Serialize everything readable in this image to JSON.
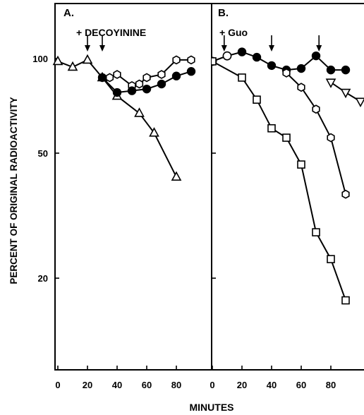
{
  "figure": {
    "ylabel": "PERCENT OF ORIGINAL RADIOACTIVITY",
    "xlabel": "MINUTES"
  },
  "chart_data": [
    {
      "type": "line",
      "panel_label": "A.",
      "annotation": "+ DECOYININE",
      "arrows_at_minutes": [
        20,
        30
      ],
      "x_ticks": [
        0,
        20,
        40,
        60,
        80
      ],
      "y_ticks": [
        100,
        50,
        20
      ],
      "xlim": [
        0,
        100
      ],
      "ylim": [
        10,
        150
      ],
      "y_scale": "log",
      "series": [
        {
          "marker": "triangle",
          "x": [
            0,
            10,
            20,
            30,
            40,
            55,
            65,
            80
          ],
          "y": [
            98,
            94,
            99,
            87,
            76,
            67,
            58,
            42
          ]
        },
        {
          "marker": "hexagon",
          "x": [
            30,
            35,
            40,
            50,
            55,
            60,
            70,
            80,
            90
          ],
          "y": [
            87,
            87,
            89,
            82,
            83,
            87,
            89,
            99,
            99
          ]
        },
        {
          "marker": "filled-circle",
          "x": [
            30,
            40,
            50,
            60,
            70,
            80,
            90
          ],
          "y": [
            87,
            78,
            79,
            80,
            83,
            88,
            91
          ]
        }
      ]
    },
    {
      "type": "line",
      "panel_label": "B.",
      "annotation": "+ Guo",
      "arrows_at_minutes": [
        8,
        40,
        72
      ],
      "x_ticks": [
        0,
        20,
        40,
        60,
        80
      ],
      "y_ticks": [
        100,
        50,
        20
      ],
      "xlim": [
        0,
        100
      ],
      "ylim": [
        10,
        150
      ],
      "y_scale": "log",
      "series": [
        {
          "marker": "filled-circle",
          "x": [
            0,
            10,
            20,
            30,
            40,
            50,
            60,
            70,
            80,
            90
          ],
          "y": [
            98,
            102,
            105,
            101,
            95,
            92,
            93,
            102,
            92,
            92
          ]
        },
        {
          "marker": "open-circle",
          "x": [
            0,
            10
          ],
          "y": [
            98,
            102
          ]
        },
        {
          "marker": "square",
          "x": [
            0,
            20,
            30,
            40,
            50,
            60,
            70,
            80,
            90
          ],
          "y": [
            98,
            87,
            74,
            60,
            56,
            46,
            28,
            23,
            17
          ]
        },
        {
          "marker": "hexagon",
          "x": [
            50,
            60,
            70,
            80,
            90
          ],
          "y": [
            90,
            81,
            69,
            56,
            37
          ]
        },
        {
          "marker": "triangle-down",
          "x": [
            80,
            90,
            100
          ],
          "y": [
            84,
            78,
            73
          ]
        }
      ]
    }
  ]
}
